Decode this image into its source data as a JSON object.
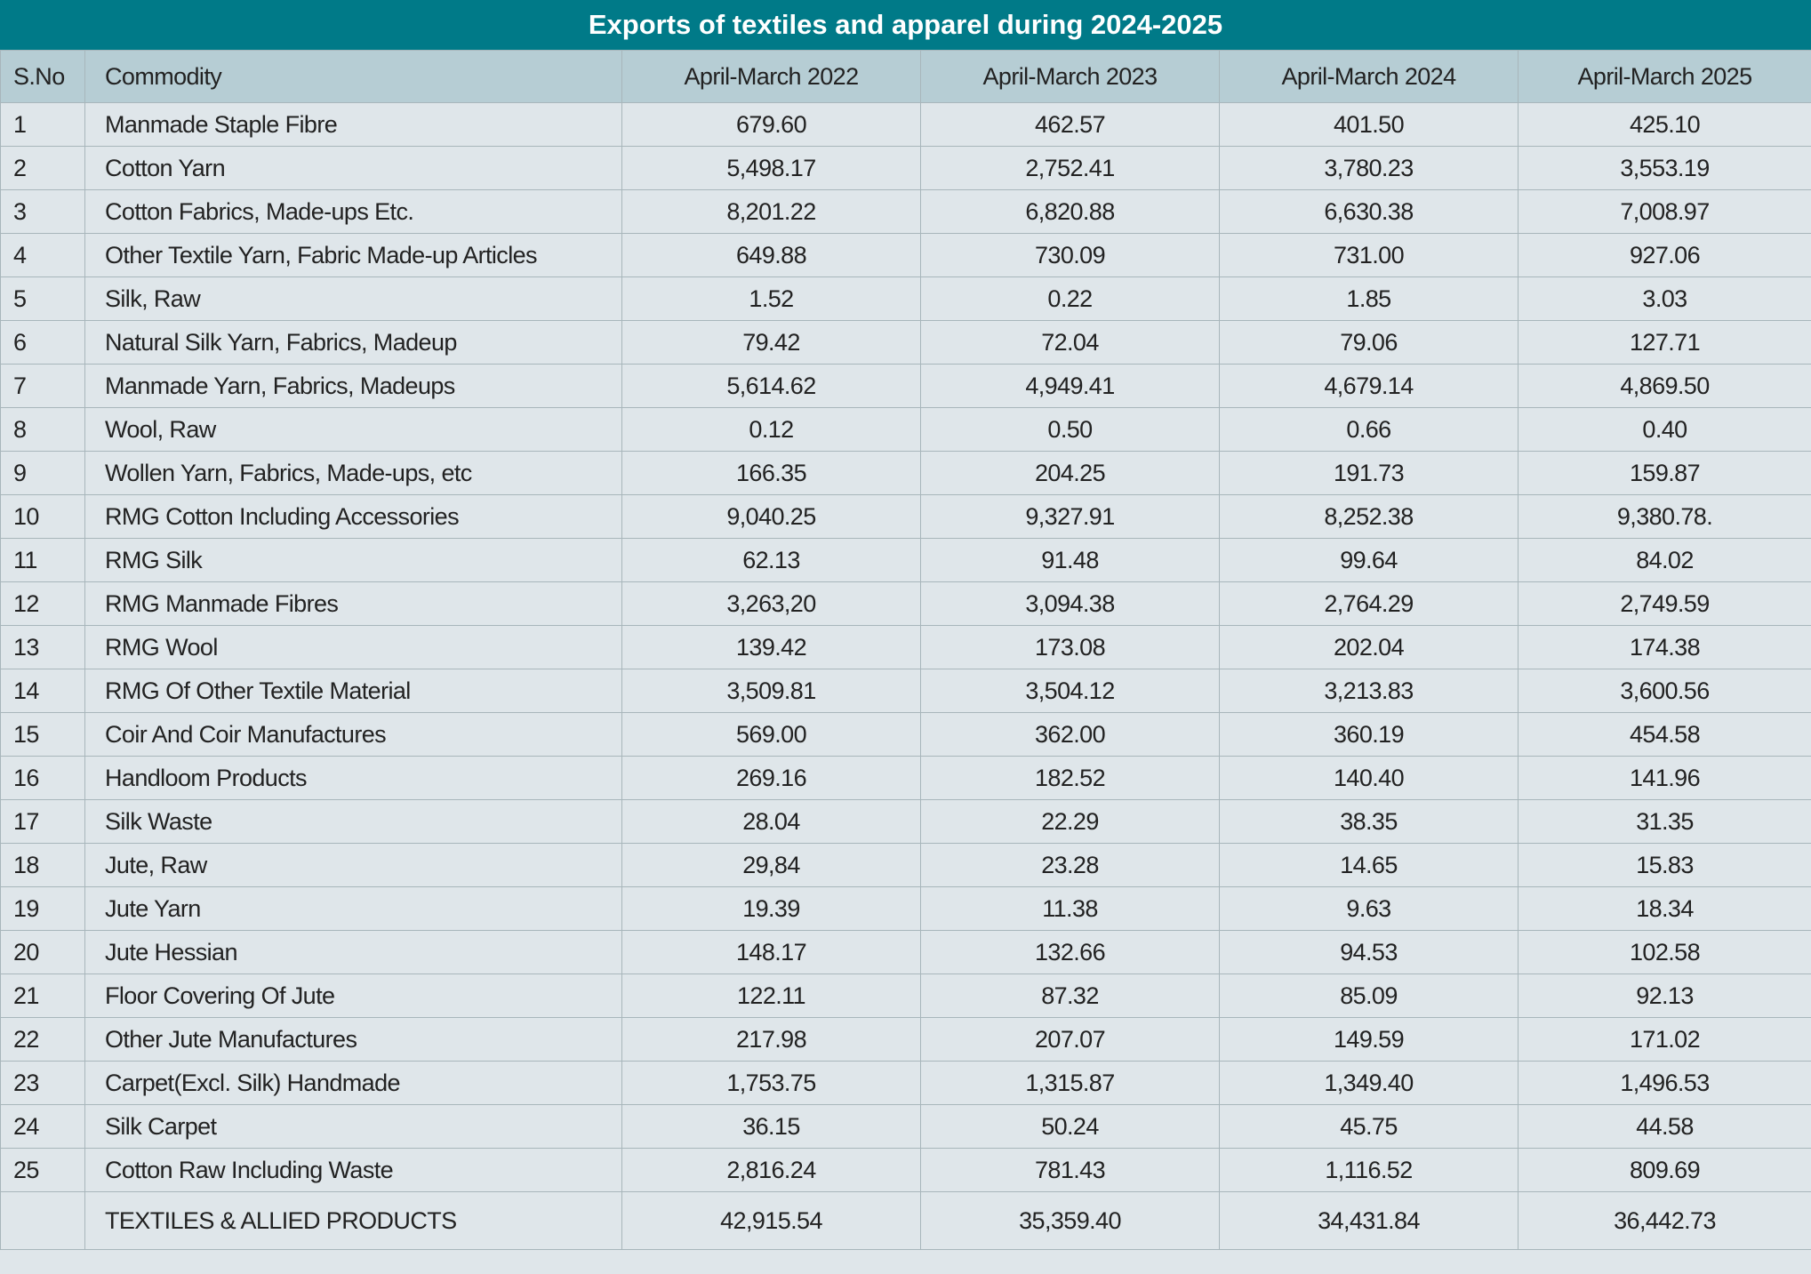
{
  "title": "Exports of textiles and apparel during 2024-2025",
  "columns": [
    "S.No",
    "Commodity",
    "April-March 2022",
    "April-March 2023",
    "April-March 2024",
    "April-March 2025"
  ],
  "rows": [
    [
      "1",
      "Manmade Staple Fibre",
      "679.60",
      "462.57",
      "401.50",
      "425.10"
    ],
    [
      "2",
      "Cotton  Yarn",
      "5,498.17",
      "2,752.41",
      "3,780.23",
      "3,553.19"
    ],
    [
      "3",
      "Cotton Fabrics, Made-ups Etc.",
      "8,201.22",
      "6,820.88",
      "6,630.38",
      "7,008.97"
    ],
    [
      "4",
      "Other Textile Yarn, Fabric Made-up Articles",
      "649.88",
      "730.09",
      "731.00",
      "927.06"
    ],
    [
      "5",
      "Silk, Raw",
      "1.52",
      "0.22",
      "1.85",
      "3.03"
    ],
    [
      "6",
      "Natural Silk Yarn, Fabrics, Madeup",
      "79.42",
      "72.04",
      "79.06",
      "127.71"
    ],
    [
      "7",
      "Manmade Yarn, Fabrics, Madeups",
      "5,614.62",
      "4,949.41",
      "4,679.14",
      "4,869.50"
    ],
    [
      "8",
      "Wool, Raw",
      "0.12",
      "0.50",
      "0.66",
      "0.40"
    ],
    [
      "9",
      "Wollen Yarn, Fabrics, Made-ups, etc",
      "166.35",
      "204.25",
      "191.73",
      "159.87"
    ],
    [
      "10",
      "RMG Cotton Including Accessories",
      "9,040.25",
      "9,327.91",
      "8,252.38",
      "9,380.78."
    ],
    [
      "11",
      "RMG Silk",
      "62.13",
      "91.48",
      "99.64",
      "84.02"
    ],
    [
      "12",
      "RMG Manmade Fibres",
      "3,263,20",
      "3,094.38",
      "2,764.29",
      "2,749.59"
    ],
    [
      "13",
      "RMG Wool",
      "139.42",
      "173.08",
      "202.04",
      "174.38"
    ],
    [
      "14",
      "RMG Of Other Textile Material",
      "3,509.81",
      "3,504.12",
      "3,213.83",
      "3,600.56"
    ],
    [
      "15",
      "Coir And Coir Manufactures",
      "569.00",
      "362.00",
      "360.19",
      "454.58"
    ],
    [
      "16",
      "Handloom Products",
      "269.16",
      "182.52",
      "140.40",
      "141.96"
    ],
    [
      "17",
      "Silk Waste",
      "28.04",
      "22.29",
      "38.35",
      "31.35"
    ],
    [
      "18",
      "Jute,  Raw",
      "29,84",
      "23.28",
      "14.65",
      "15.83"
    ],
    [
      "19",
      "Jute Yarn",
      "19.39",
      "11.38",
      "9.63",
      "18.34"
    ],
    [
      "20",
      "Jute Hessian",
      "148.17",
      "132.66",
      "94.53",
      "102.58"
    ],
    [
      "21",
      "Floor Covering Of Jute",
      "122.11",
      "87.32",
      "85.09",
      "92.13"
    ],
    [
      "22",
      "Other Jute Manufactures",
      "217.98",
      "207.07",
      "149.59",
      "171.02"
    ],
    [
      "23",
      "Carpet(Excl. Silk) Handmade",
      "1,753.75",
      "1,315.87",
      "1,349.40",
      "1,496.53"
    ],
    [
      "24",
      "Silk Carpet",
      "36.15",
      "50.24",
      "45.75",
      "44.58"
    ],
    [
      "25",
      "Cotton Raw Including Waste",
      "2,816.24",
      "781.43",
      "1,116.52",
      "809.69"
    ]
  ],
  "total": [
    "TEXTILES & ALLIED PRODUCTS",
    "42,915.54",
    "35,359.40",
    "34,431.84",
    "36,442.73"
  ]
}
